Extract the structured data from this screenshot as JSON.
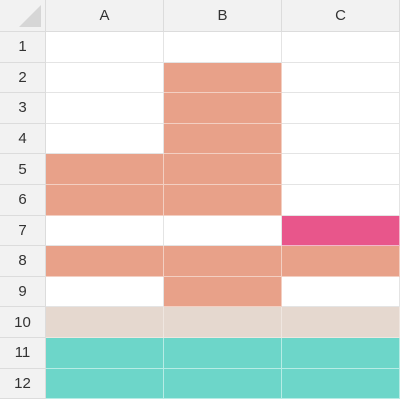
{
  "columns": [
    "A",
    "B",
    "C"
  ],
  "rows": [
    "1",
    "2",
    "3",
    "4",
    "5",
    "6",
    "7",
    "8",
    "9",
    "10",
    "11",
    "12"
  ],
  "colors": {
    "salmon": "#e8a189",
    "pink": "#e8568b",
    "beige": "#e5d8cf",
    "teal": "#6dd6c9",
    "header_bg": "#f2f2f2",
    "gridline": "#e4e4e4"
  },
  "cell_fills": [
    [
      "none",
      "none",
      "none"
    ],
    [
      "none",
      "salmon",
      "none"
    ],
    [
      "none",
      "salmon",
      "none"
    ],
    [
      "none",
      "salmon",
      "none"
    ],
    [
      "salmon",
      "salmon",
      "none"
    ],
    [
      "salmon",
      "salmon",
      "none"
    ],
    [
      "none",
      "none",
      "pink"
    ],
    [
      "salmon",
      "salmon",
      "salmon"
    ],
    [
      "none",
      "salmon",
      "none"
    ],
    [
      "beige",
      "beige",
      "beige"
    ],
    [
      "teal",
      "teal",
      "teal"
    ],
    [
      "teal",
      "teal",
      "teal"
    ]
  ]
}
